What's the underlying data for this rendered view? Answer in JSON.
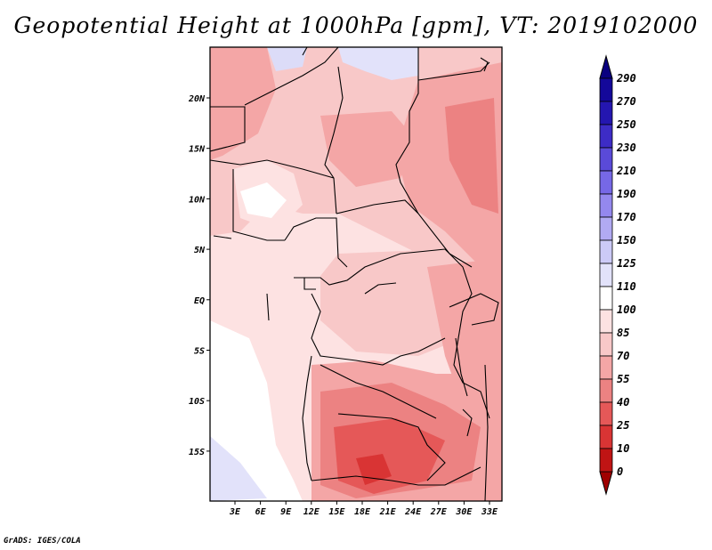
{
  "title": "Geopotential Height at 1000hPa [gpm], VT: 2019102000",
  "credit": "GrADS: IGES/COLA",
  "map": {
    "lat_labels": [
      "20N",
      "15N",
      "10N",
      "5N",
      "EQ",
      "5S",
      "10S",
      "15S"
    ],
    "lon_labels": [
      "3E",
      "6E",
      "9E",
      "12E",
      "15E",
      "18E",
      "21E",
      "24E",
      "27E",
      "30E",
      "33E"
    ]
  },
  "colorbar": {
    "levels": [
      "290",
      "270",
      "250",
      "230",
      "210",
      "190",
      "170",
      "150",
      "125",
      "110",
      "100",
      "85",
      "70",
      "55",
      "40",
      "25",
      "10",
      "0"
    ],
    "colors": {
      "c1": "#a00000",
      "c2": "#c01414",
      "c3": "#d93434",
      "c4": "#e55858",
      "c5": "#ec8282",
      "c6": "#f4a6a6",
      "c7": "#f8c8c8",
      "c8": "#fde2e2",
      "c9": "#ffffff",
      "c10": "#e2e2fa",
      "c11": "#cccaf7",
      "c12": "#b1aaf3",
      "c13": "#9488ee",
      "c14": "#7668e6",
      "c15": "#5a4ad8",
      "c16": "#3d2cc6",
      "c17": "#2416b0",
      "c18": "#14089a",
      "c19": "#0a0080"
    }
  }
}
